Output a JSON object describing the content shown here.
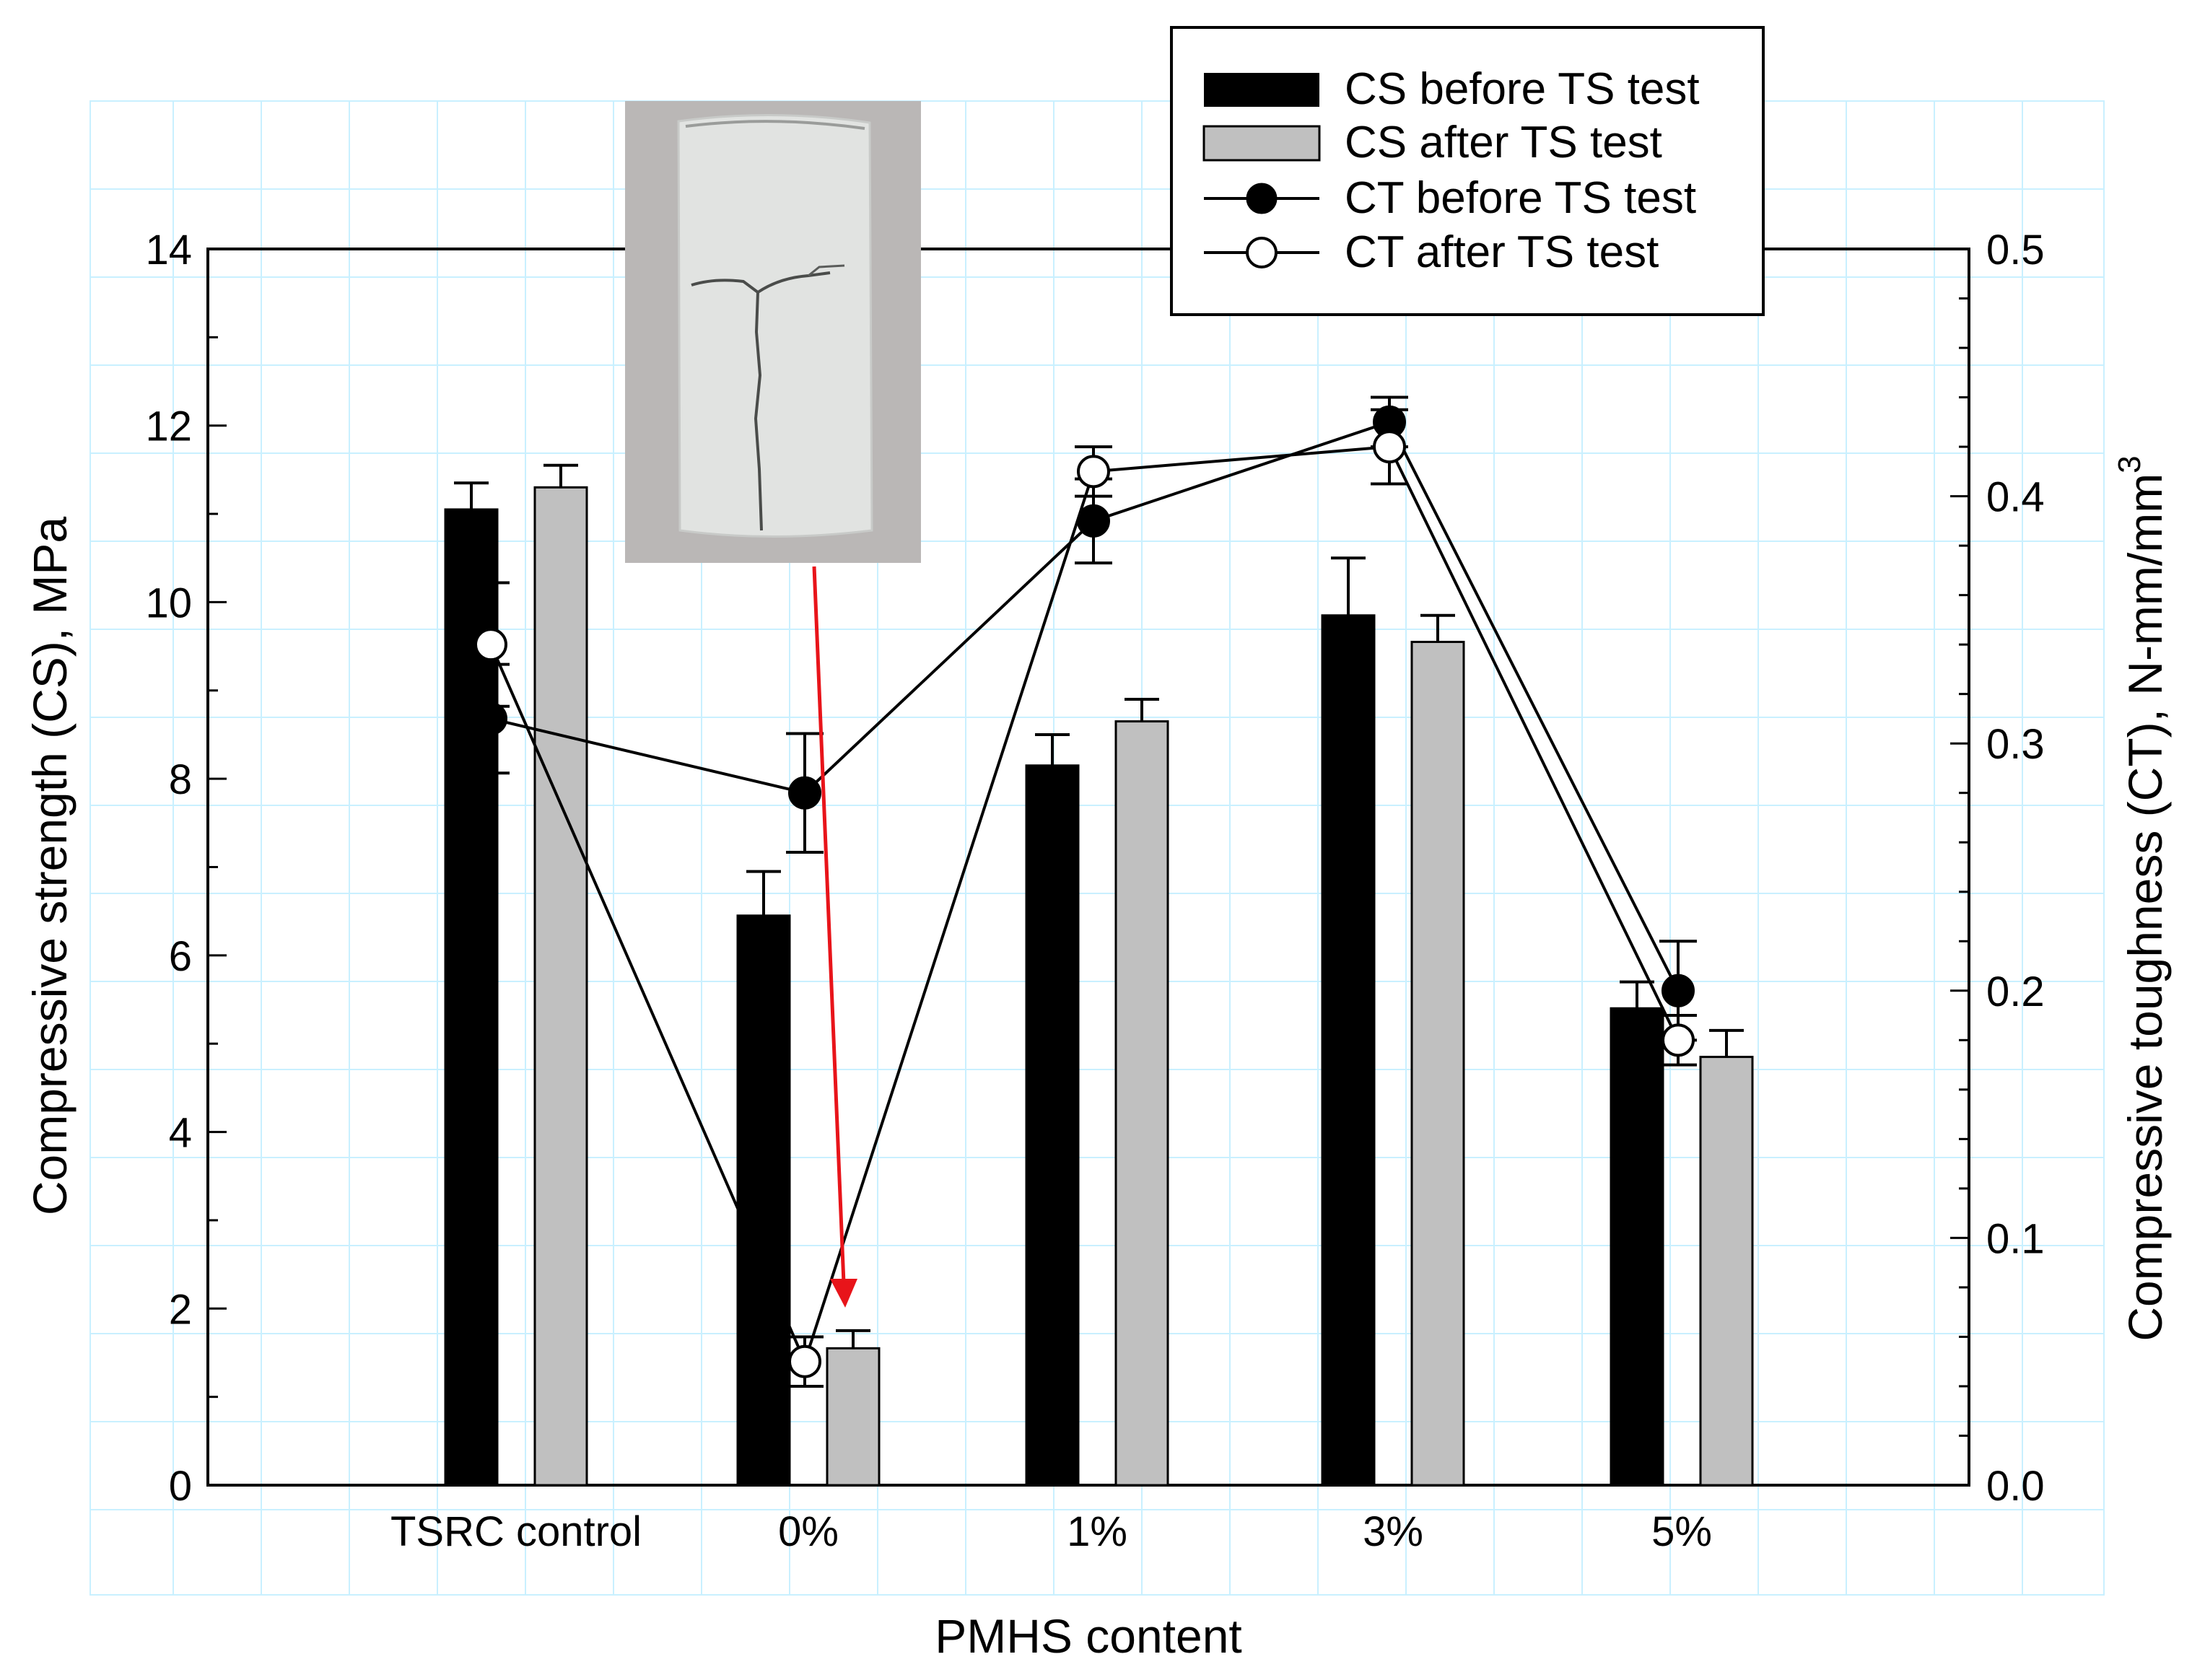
{
  "chart_data": {
    "type": "bar",
    "xlabel": "PMHS content",
    "ylabel": "Compressive strength (CS), MPa",
    "y2label": {
      "main": "Compressive toughness (CT), N-mm/mm",
      "sup": "3"
    },
    "categories": [
      "TSRC control",
      "0%",
      "1%",
      "3%",
      "5%"
    ],
    "ylim": [
      0,
      14
    ],
    "y2lim": [
      0,
      0.5
    ],
    "yticks": [
      "0",
      "2",
      "4",
      "6",
      "8",
      "10",
      "12",
      "14"
    ],
    "y2ticks": [
      "0.0",
      "0.1",
      "0.2",
      "0.3",
      "0.4",
      "0.5"
    ],
    "grid": false,
    "legend_position": "top-right",
    "bar_series": [
      {
        "name": "CS before TS test",
        "color": "#000000",
        "values": [
          11.05,
          6.45,
          8.15,
          9.85,
          5.4
        ],
        "errors": [
          0.3,
          0.5,
          0.35,
          0.65,
          0.3
        ]
      },
      {
        "name": "CS after TS test",
        "color": "#c0c0c0",
        "values": [
          11.3,
          1.55,
          8.65,
          9.55,
          4.85
        ],
        "errors": [
          0.25,
          0.2,
          0.25,
          0.3,
          0.3
        ]
      }
    ],
    "line_series": [
      {
        "name": "CT before TS test",
        "marker": "filled-circle",
        "axis": "right",
        "values": [
          0.31,
          0.28,
          0.39,
          0.43,
          0.2
        ],
        "errors": [
          0.022,
          0.024,
          0.017,
          0.01,
          0.02
        ]
      },
      {
        "name": "CT after TS test",
        "marker": "open-circle",
        "axis": "right",
        "values": [
          0.34,
          0.05,
          0.41,
          0.42,
          0.18
        ],
        "errors": [
          0.025,
          0.01,
          0.01,
          0.015,
          0.01
        ]
      }
    ],
    "inset_image": {
      "subject": "cracked cylindrical specimen photo",
      "points_to_category": "0%",
      "arrow_color": "#e8141a"
    }
  },
  "colors": {
    "background": "#ffffff",
    "grid_cyan": "#c9f0ff",
    "photo_background": "#bab7b6",
    "specimen": "#e1e3e1",
    "arrow": "#e8141a"
  }
}
